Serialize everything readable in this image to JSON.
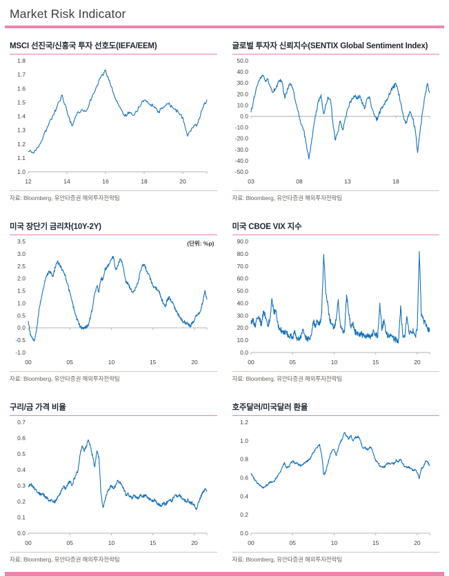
{
  "page": {
    "title": "Market Risk Indicator"
  },
  "theme": {
    "accent_pink": "#ec84ac",
    "title_underline_pink": "#e87ca6",
    "line_blue": "#1670b8",
    "axis_gray": "#b3b3b3",
    "tick_text": "#3f3f3f",
    "source_gray": "#6e655e"
  },
  "chart_data": [
    {
      "type": "line",
      "title": "MSCI 선진국/신흥국 투자 선호도(IEFA/EEM)",
      "unit_label": "",
      "source": "자료: Bloomberg, 유안타증권 해외투자전략팀",
      "x0": 2012,
      "x1": 2021.25,
      "x_ticks": [
        [
          2012,
          "12"
        ],
        [
          2014,
          "14"
        ],
        [
          2016,
          "16"
        ],
        [
          2018,
          "18"
        ],
        [
          2020,
          "20"
        ]
      ],
      "ylim": [
        1.0,
        1.8
      ],
      "y_step": 0.1,
      "y_decimals": 1,
      "axis_at": null,
      "seed": 11,
      "jitter": 0.013,
      "upsample": 6,
      "values": [
        1.15,
        1.14,
        1.18,
        1.24,
        1.33,
        1.4,
        1.47,
        1.55,
        1.44,
        1.33,
        1.41,
        1.45,
        1.44,
        1.52,
        1.6,
        1.68,
        1.73,
        1.63,
        1.53,
        1.46,
        1.4,
        1.43,
        1.41,
        1.47,
        1.52,
        1.49,
        1.47,
        1.43,
        1.47,
        1.49,
        1.46,
        1.43,
        1.39,
        1.26,
        1.32,
        1.34,
        1.45,
        1.52
      ]
    },
    {
      "type": "line",
      "title": "글로벌 투자자 신뢰지수(SENTIX Global Sentiment Index)",
      "unit_label": "",
      "source": "자료: Bloomberg, 유안타증권 해외투자전략팀",
      "x0": 2003,
      "x1": 2021.5,
      "x_ticks": [
        [
          2003,
          "03"
        ],
        [
          2008,
          "08"
        ],
        [
          2013,
          "13"
        ],
        [
          2018,
          "18"
        ]
      ],
      "ylim": [
        -50,
        50
      ],
      "y_step": 10,
      "y_decimals": 1,
      "axis_at": 0,
      "seed": 22,
      "jitter": 2.0,
      "upsample": 5,
      "values": [
        4,
        14,
        24,
        30,
        34,
        36,
        31,
        33,
        27,
        21,
        25,
        29,
        32,
        30,
        16,
        24,
        29,
        26,
        18,
        9,
        0,
        -8,
        -14,
        -28,
        -38,
        -25,
        -8,
        4,
        14,
        20,
        2,
        10,
        17,
        14,
        -8,
        -22,
        -14,
        -4,
        -12,
        -2,
        7,
        12,
        16,
        18,
        16,
        19,
        12,
        7,
        16,
        18,
        8,
        2,
        -4,
        2,
        7,
        10,
        14,
        18,
        23,
        26,
        29,
        22,
        12,
        2,
        -6,
        -1,
        4,
        -2,
        -12,
        -33,
        -14,
        3,
        18,
        29,
        21
      ]
    },
    {
      "type": "line",
      "title": "미국 장단기 금리차(10Y-2Y)",
      "unit_label": "(단위: %p)",
      "source": "자료: Bloomberg, 유안타증권 해외투자전략팀",
      "x0": 2000,
      "x1": 2021.5,
      "x_ticks": [
        [
          2000,
          "00"
        ],
        [
          2005,
          "05"
        ],
        [
          2010,
          "10"
        ],
        [
          2015,
          "15"
        ],
        [
          2020,
          "20"
        ]
      ],
      "ylim": [
        -1.0,
        3.5
      ],
      "y_step": 0.5,
      "y_decimals": 1,
      "axis_at": 0,
      "seed": 33,
      "jitter": 0.07,
      "upsample": 6,
      "values": [
        0.3,
        -0.3,
        -0.45,
        -0.5,
        -0.1,
        0.6,
        1.1,
        1.5,
        1.9,
        2.1,
        2.3,
        2.2,
        2.1,
        2.45,
        2.7,
        2.55,
        2.4,
        2.3,
        2.05,
        1.75,
        1.45,
        1.1,
        0.75,
        0.45,
        0.25,
        0.05,
        -0.05,
        0,
        0.05,
        0.1,
        0.45,
        0.85,
        1.4,
        1.7,
        1.45,
        2.0,
        1.95,
        2.4,
        2.45,
        2.6,
        2.8,
        2.85,
        2.35,
        2.5,
        2.75,
        2.7,
        2.3,
        1.85,
        1.8,
        1.6,
        1.45,
        1.5,
        1.65,
        1.9,
        2.3,
        2.5,
        2.55,
        2.3,
        2.15,
        1.95,
        1.7,
        1.65,
        1.55,
        1.45,
        1.2,
        1.0,
        0.85,
        1.15,
        1.25,
        1.05,
        0.95,
        0.7,
        0.55,
        0.45,
        0.3,
        0.25,
        0.18,
        0.15,
        0.05,
        0.25,
        0.3,
        0.5,
        0.55,
        0.7,
        1.05,
        1.5,
        1.15
      ]
    },
    {
      "type": "line",
      "title": "미국 CBOE VIX 지수",
      "unit_label": "",
      "source": "자료: Bloomberg, 유안타증권 해외투자전략팀",
      "x0": 2000,
      "x1": 2021.5,
      "x_ticks": [
        [
          2000,
          "00"
        ],
        [
          2005,
          "05"
        ],
        [
          2010,
          "10"
        ],
        [
          2015,
          "15"
        ],
        [
          2020,
          "20"
        ]
      ],
      "ylim": [
        0,
        90
      ],
      "y_step": 10,
      "y_decimals": 1,
      "axis_at": null,
      "seed": 44,
      "jitter": 2.4,
      "upsample": 7,
      "values": [
        24,
        26,
        21,
        28,
        28,
        22,
        34,
        28,
        22,
        26,
        43,
        32,
        34,
        22,
        19,
        17,
        17,
        16,
        14,
        13,
        13,
        16,
        12,
        11,
        12,
        18,
        12,
        11,
        11,
        14,
        25,
        22,
        26,
        22,
        32,
        80,
        48,
        38,
        26,
        23,
        20,
        27,
        43,
        22,
        18,
        17,
        47,
        32,
        21,
        24,
        17,
        16,
        14,
        15,
        14,
        13,
        15,
        12,
        14,
        17,
        15,
        13,
        40,
        18,
        27,
        16,
        13,
        14,
        12,
        11,
        10,
        10,
        37,
        15,
        13,
        30,
        16,
        16,
        19,
        13,
        18,
        82,
        30,
        26,
        23,
        19,
        17
      ]
    },
    {
      "type": "line",
      "title": "구리/금 가격 비율",
      "unit_label": "",
      "source": "자료: Bloomberg, 유안타증권 해외투자전략팀",
      "x0": 2000,
      "x1": 2021.5,
      "x_ticks": [
        [
          2000,
          "00"
        ],
        [
          2005,
          "05"
        ],
        [
          2010,
          "10"
        ],
        [
          2015,
          "15"
        ],
        [
          2020,
          "20"
        ]
      ],
      "ylim": [
        0,
        0.7
      ],
      "y_step": 0.1,
      "y_decimals": 1,
      "axis_at": null,
      "seed": 55,
      "jitter": 0.01,
      "upsample": 6,
      "values": [
        0.29,
        0.31,
        0.3,
        0.28,
        0.27,
        0.26,
        0.24,
        0.25,
        0.23,
        0.22,
        0.21,
        0.21,
        0.2,
        0.2,
        0.22,
        0.24,
        0.27,
        0.3,
        0.28,
        0.31,
        0.33,
        0.3,
        0.34,
        0.37,
        0.4,
        0.5,
        0.55,
        0.52,
        0.55,
        0.59,
        0.54,
        0.48,
        0.42,
        0.52,
        0.48,
        0.25,
        0.16,
        0.21,
        0.26,
        0.28,
        0.3,
        0.28,
        0.3,
        0.33,
        0.32,
        0.3,
        0.28,
        0.24,
        0.25,
        0.23,
        0.22,
        0.24,
        0.23,
        0.22,
        0.24,
        0.23,
        0.24,
        0.23,
        0.22,
        0.21,
        0.2,
        0.21,
        0.19,
        0.18,
        0.17,
        0.19,
        0.18,
        0.2,
        0.21,
        0.2,
        0.23,
        0.24,
        0.23,
        0.24,
        0.22,
        0.21,
        0.2,
        0.21,
        0.19,
        0.19,
        0.18,
        0.15,
        0.2,
        0.23,
        0.26,
        0.28,
        0.27
      ]
    },
    {
      "type": "line",
      "title": "호주달러/미국달러 환율",
      "unit_label": "",
      "source": "자료: Bloomberg, 유안타증권 해외투자전략팀",
      "x0": 2000,
      "x1": 2021.5,
      "x_ticks": [
        [
          2000,
          "00"
        ],
        [
          2005,
          "05"
        ],
        [
          2010,
          "10"
        ],
        [
          2015,
          "15"
        ],
        [
          2020,
          "20"
        ]
      ],
      "ylim": [
        0,
        1.2
      ],
      "y_step": 0.2,
      "y_decimals": 1,
      "axis_at": null,
      "seed": 66,
      "jitter": 0.012,
      "upsample": 6,
      "values": [
        0.65,
        0.61,
        0.57,
        0.54,
        0.52,
        0.5,
        0.49,
        0.51,
        0.52,
        0.55,
        0.55,
        0.56,
        0.59,
        0.63,
        0.66,
        0.71,
        0.76,
        0.71,
        0.71,
        0.75,
        0.78,
        0.76,
        0.76,
        0.74,
        0.73,
        0.75,
        0.76,
        0.78,
        0.79,
        0.83,
        0.87,
        0.91,
        0.93,
        0.96,
        0.85,
        0.63,
        0.67,
        0.75,
        0.83,
        0.9,
        0.9,
        0.84,
        0.92,
        0.99,
        1.02,
        1.09,
        1.05,
        1.02,
        1.06,
        1.0,
        1.04,
        1.04,
        1.04,
        0.97,
        0.91,
        0.93,
        0.9,
        0.93,
        0.92,
        0.85,
        0.78,
        0.77,
        0.72,
        0.72,
        0.71,
        0.74,
        0.76,
        0.74,
        0.76,
        0.75,
        0.79,
        0.77,
        0.8,
        0.75,
        0.72,
        0.71,
        0.71,
        0.7,
        0.68,
        0.69,
        0.66,
        0.59,
        0.7,
        0.72,
        0.78,
        0.77,
        0.73
      ]
    }
  ]
}
